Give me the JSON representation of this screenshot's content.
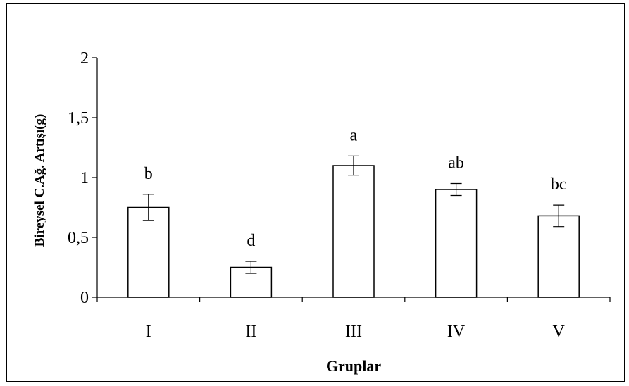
{
  "chart_data": {
    "type": "bar",
    "title": "",
    "xlabel": "Gruplar",
    "ylabel": "Bireysel C.Ağ. Artışı(g)",
    "ylim": [
      0,
      2
    ],
    "yticks": [
      {
        "value": 0,
        "label": "0"
      },
      {
        "value": 0.5,
        "label": "0,5"
      },
      {
        "value": 1,
        "label": "1"
      },
      {
        "value": 1.5,
        "label": "1,5"
      },
      {
        "value": 2,
        "label": "2"
      }
    ],
    "categories": [
      "I",
      "II",
      "III",
      "IV",
      "V"
    ],
    "values": [
      0.75,
      0.25,
      1.1,
      0.9,
      0.68
    ],
    "errors": [
      0.11,
      0.05,
      0.08,
      0.05,
      0.09
    ],
    "significance_labels": [
      "b",
      "d",
      "a",
      "ab",
      "bc"
    ],
    "grid": false,
    "colors": {
      "bar_fill": "#ffffff",
      "bar_stroke": "#000000"
    }
  }
}
